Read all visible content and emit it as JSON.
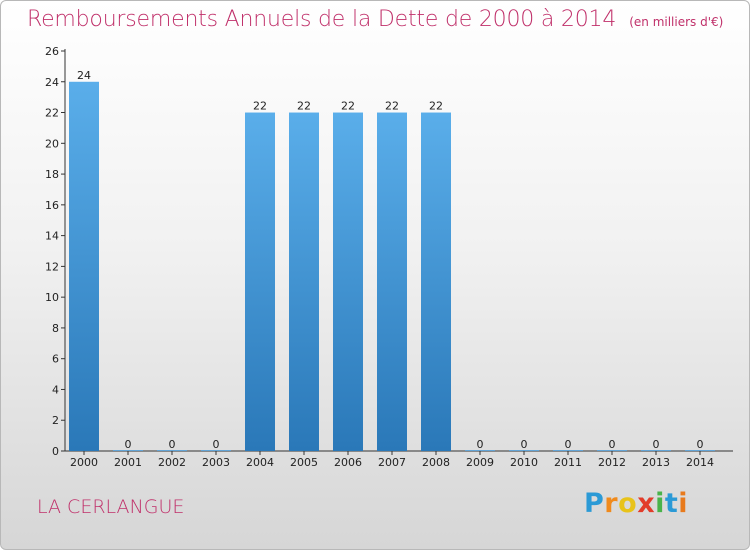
{
  "chart_data": {
    "type": "bar",
    "title": "Remboursements Annuels de la Dette de 2000 à 2014",
    "unit_note": "(en milliers d'€)",
    "categories": [
      "2000",
      "2001",
      "2002",
      "2003",
      "2004",
      "2005",
      "2006",
      "2007",
      "2008",
      "2009",
      "2010",
      "2011",
      "2012",
      "2013",
      "2014"
    ],
    "values": [
      24,
      0,
      0,
      0,
      22,
      22,
      22,
      22,
      22,
      0,
      0,
      0,
      0,
      0,
      0
    ],
    "data_labels": [
      "24",
      "0",
      "0",
      "0",
      "22",
      "22",
      "22",
      "22",
      "22",
      "0",
      "0",
      "0",
      "0",
      "0",
      "0"
    ],
    "ylim": [
      0,
      26
    ],
    "yticks": [
      "0",
      "2",
      "4",
      "6",
      "8",
      "10",
      "12",
      "14",
      "16",
      "18",
      "20",
      "22",
      "24",
      "26"
    ],
    "grid": false,
    "bar_color_top": "#5aaeea",
    "bar_color_bottom": "#2a78b8"
  },
  "commune": "LA CERLANGUE",
  "brand": {
    "letters": [
      "P",
      "r",
      "o",
      "x",
      "i",
      "t",
      "i"
    ],
    "colors": [
      "#2b9ad6",
      "#f08a1c",
      "#e8c31a",
      "#e23c2a",
      "#49b34a",
      "#2b9ad6",
      "#e87a1c"
    ]
  }
}
